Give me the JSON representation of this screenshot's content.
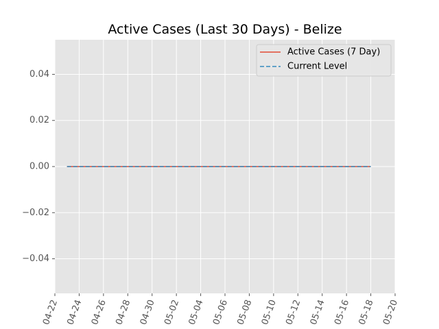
{
  "chart_data": {
    "type": "line",
    "title": "Active Cases (Last 30 Days) - Belize",
    "xlabel": "",
    "ylabel": "",
    "x_axis_type": "date",
    "xlim": [
      "2020-04-22",
      "2020-05-20"
    ],
    "ylim": [
      -0.055,
      0.055
    ],
    "grid": true,
    "legend_position": "top-right",
    "x_ticks": [
      {
        "date": "2020-04-22",
        "label": "04-22"
      },
      {
        "date": "2020-04-24",
        "label": "04-24"
      },
      {
        "date": "2020-04-26",
        "label": "04-26"
      },
      {
        "date": "2020-04-28",
        "label": "04-28"
      },
      {
        "date": "2020-04-30",
        "label": "04-30"
      },
      {
        "date": "2020-05-02",
        "label": "05-02"
      },
      {
        "date": "2020-05-04",
        "label": "05-04"
      },
      {
        "date": "2020-05-06",
        "label": "05-06"
      },
      {
        "date": "2020-05-08",
        "label": "05-08"
      },
      {
        "date": "2020-05-10",
        "label": "05-10"
      },
      {
        "date": "2020-05-12",
        "label": "05-12"
      },
      {
        "date": "2020-05-14",
        "label": "05-14"
      },
      {
        "date": "2020-05-16",
        "label": "05-16"
      },
      {
        "date": "2020-05-18",
        "label": "05-18"
      },
      {
        "date": "2020-05-20",
        "label": "05-20"
      }
    ],
    "y_ticks": [
      {
        "value": 0.04,
        "label": "0.04"
      },
      {
        "value": 0.02,
        "label": "0.02"
      },
      {
        "value": 0.0,
        "label": "0.00"
      },
      {
        "value": -0.02,
        "label": "−0.02"
      },
      {
        "value": -0.04,
        "label": "−0.04"
      }
    ],
    "series": [
      {
        "name": "Active Cases (7 Day)",
        "color": "#E24A33",
        "style": "solid",
        "x": [
          "2020-04-23",
          "2020-05-18"
        ],
        "y": [
          0,
          0
        ]
      },
      {
        "name": "Current Level",
        "color": "#348ABD",
        "style": "dashed",
        "x": [
          "2020-04-23",
          "2020-05-18"
        ],
        "y": [
          0,
          0
        ]
      }
    ]
  }
}
